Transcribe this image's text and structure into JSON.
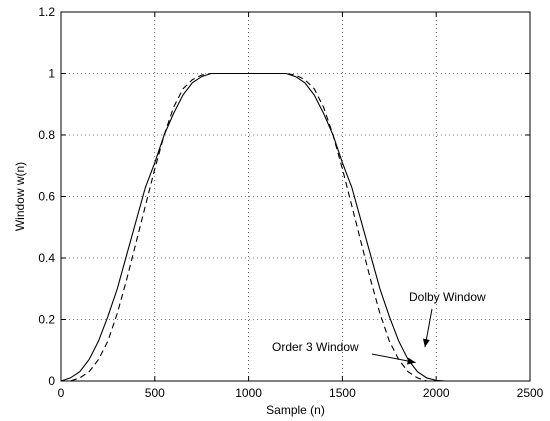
{
  "chart_data": {
    "type": "line",
    "title": "",
    "xlabel": "Sample (n)",
    "ylabel": "Window w(n)",
    "xlim": [
      0,
      2500
    ],
    "ylim": [
      0,
      1.2
    ],
    "xticks": [
      0,
      500,
      1000,
      1500,
      2000,
      2500
    ],
    "yticks": [
      0,
      0.2,
      0.4,
      0.6,
      0.8,
      1,
      1.2
    ],
    "xtick_labels": [
      "0",
      "500",
      "1000",
      "1500",
      "2000",
      "2500"
    ],
    "ytick_labels": [
      "0",
      "0.2",
      "0.4",
      "0.6",
      "0.8",
      "1",
      "1.2"
    ],
    "grid": true,
    "series": [
      {
        "name": "Dolby Window",
        "style": "solid",
        "color": "#000000",
        "x": [
          0,
          50,
          100,
          150,
          200,
          250,
          300,
          350,
          400,
          450,
          500,
          550,
          600,
          650,
          700,
          750,
          800,
          850,
          900,
          950,
          1000,
          1050,
          1100,
          1150,
          1200,
          1250,
          1300,
          1350,
          1400,
          1450,
          1500,
          1550,
          1600,
          1650,
          1700,
          1750,
          1800,
          1850,
          1900,
          1950,
          2000,
          2048
        ],
        "y": [
          0,
          0.01,
          0.03,
          0.07,
          0.13,
          0.21,
          0.3,
          0.41,
          0.52,
          0.63,
          0.71,
          0.8,
          0.87,
          0.93,
          0.97,
          0.99,
          1.0,
          1.0,
          1.0,
          1.0,
          1.0,
          1.0,
          1.0,
          1.0,
          1.0,
          0.99,
          0.97,
          0.93,
          0.87,
          0.8,
          0.71,
          0.63,
          0.52,
          0.41,
          0.3,
          0.21,
          0.13,
          0.07,
          0.03,
          0.01,
          0.002,
          0
        ]
      },
      {
        "name": "Order 3 Window",
        "style": "dashed",
        "color": "#000000",
        "x": [
          0,
          50,
          100,
          150,
          200,
          250,
          300,
          350,
          400,
          450,
          500,
          550,
          600,
          650,
          700,
          750,
          800,
          850,
          900,
          950,
          1000,
          1050,
          1100,
          1150,
          1200,
          1250,
          1300,
          1350,
          1400,
          1450,
          1500,
          1550,
          1600,
          1650,
          1700,
          1750,
          1800,
          1850,
          1900,
          1950,
          2000
        ],
        "y": [
          0,
          0,
          0.01,
          0.03,
          0.07,
          0.13,
          0.22,
          0.33,
          0.45,
          0.57,
          0.69,
          0.8,
          0.89,
          0.95,
          0.98,
          0.995,
          1.0,
          1.0,
          1.0,
          1.0,
          1.0,
          1.0,
          1.0,
          1.0,
          1.0,
          0.995,
          0.98,
          0.95,
          0.89,
          0.8,
          0.69,
          0.57,
          0.45,
          0.33,
          0.22,
          0.13,
          0.07,
          0.03,
          0.01,
          0,
          0
        ]
      }
    ],
    "annotations": [
      {
        "text": "Dolby Window",
        "target_series": "Dolby Window",
        "target": [
          1940,
          0.11
        ]
      },
      {
        "text": "Order 3 Window",
        "target_series": "Order 3 Window",
        "target": [
          1890,
          0.06
        ]
      }
    ]
  }
}
